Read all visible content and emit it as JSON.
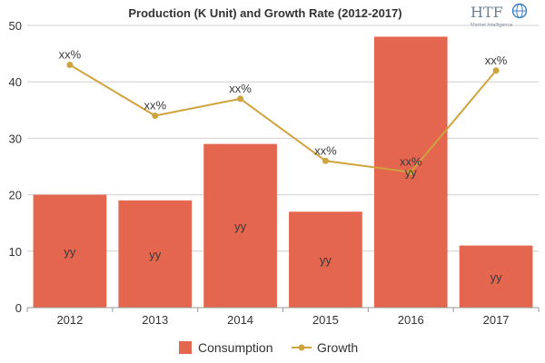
{
  "logo": {
    "name": "HTF",
    "tagline": "Market Intelligence"
  },
  "colors": {
    "bar": "#e4664f",
    "line": "#cfa33e",
    "grid": "#d0d0d0",
    "axis": "#9a9a9a"
  },
  "chart_data": {
    "type": "bar",
    "title": "Production (K Unit) and Growth Rate (2012-2017)",
    "categories": [
      "2012",
      "2013",
      "2014",
      "2015",
      "2016",
      "2017"
    ],
    "series": [
      {
        "name": "Consumption",
        "type": "bar",
        "values": [
          20,
          19,
          29,
          17,
          48,
          11
        ],
        "labels": [
          "yy",
          "yy",
          "yy",
          "yy",
          "yy",
          "yy"
        ]
      },
      {
        "name": "Growth",
        "type": "line",
        "values": [
          43,
          34,
          37,
          26,
          24,
          42
        ],
        "labels": [
          "xx%",
          "xx%",
          "xx%",
          "xx%",
          "xx%",
          "xx%"
        ]
      }
    ],
    "ylim": [
      0,
      50
    ],
    "yticks": [
      0,
      10,
      20,
      30,
      40,
      50
    ],
    "xlabel": "",
    "ylabel": "",
    "grid": true,
    "legend": {
      "position": "bottom-center",
      "items": [
        "Consumption",
        "Growth"
      ]
    }
  }
}
